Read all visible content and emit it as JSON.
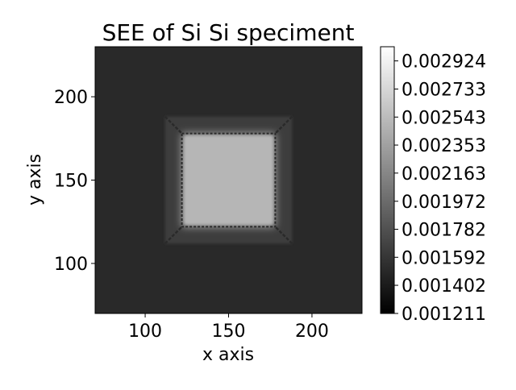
{
  "chart_data": {
    "type": "heatmap",
    "title": "SEE of Si Si speciment",
    "xlabel": "x axis",
    "ylabel": "y axis",
    "xlim": [
      70,
      230
    ],
    "ylim": [
      70,
      230
    ],
    "x_ticks": [
      100,
      150,
      200
    ],
    "y_ticks": [
      100,
      150,
      200
    ],
    "x_tick_labels": [
      "100",
      "150",
      "200"
    ],
    "y_tick_labels": [
      "100",
      "150",
      "200"
    ],
    "colormap": "gray",
    "colorbar": {
      "min": 0.001211,
      "max": 0.00302,
      "ticks": [
        0.001211,
        0.001402,
        0.001592,
        0.001782,
        0.001972,
        0.002163,
        0.002353,
        0.002543,
        0.002733,
        0.002924
      ],
      "tick_labels": [
        "0.001211",
        "0.001402",
        "0.001592",
        "0.001782",
        "0.001972",
        "0.002163",
        "0.002353",
        "0.002543",
        "0.002733",
        "0.002924"
      ]
    },
    "regions": {
      "background_value": 0.0015,
      "pyramid_outer": {
        "x": [
          112,
          188
        ],
        "y": [
          112,
          188
        ],
        "value": 0.00165
      },
      "inner_plateau": {
        "x": [
          122,
          178
        ],
        "y": [
          122,
          178
        ],
        "value": 0.00245
      }
    }
  }
}
